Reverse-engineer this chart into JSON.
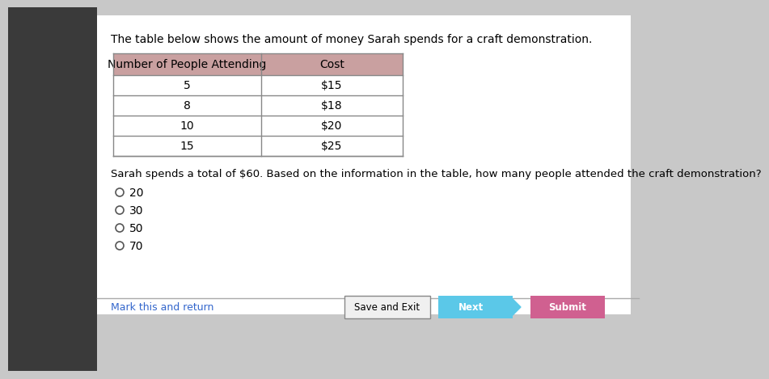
{
  "bg_color": "#ffffff",
  "page_bg": "#c8c8c8",
  "content_bg": "#ffffff",
  "title_text": "The table below shows the amount of money Sarah spends for a craft demonstration.",
  "table_header": [
    "Number of People Attending",
    "Cost"
  ],
  "table_rows": [
    [
      "5",
      "$15"
    ],
    [
      "8",
      "$18"
    ],
    [
      "10",
      "$20"
    ],
    [
      "15",
      "$25"
    ]
  ],
  "header_bg": "#c9a0a0",
  "header_text_color": "#000000",
  "row_bg": "#ffffff",
  "table_border_color": "#888888",
  "question_text": "Sarah spends a total of $60. Based on the information in the table, how many people attended the craft demonstration?",
  "choices": [
    "20",
    "30",
    "50",
    "70"
  ],
  "mark_link": "Mark this and return",
  "btn_save": "Save and Exit",
  "btn_next": "Next",
  "btn_submit": "Submit",
  "btn_next_color": "#5bc8e8",
  "btn_submit_color": "#d06090",
  "title_fontsize": 10,
  "question_fontsize": 9.5,
  "choice_fontsize": 10,
  "table_fontsize": 10
}
